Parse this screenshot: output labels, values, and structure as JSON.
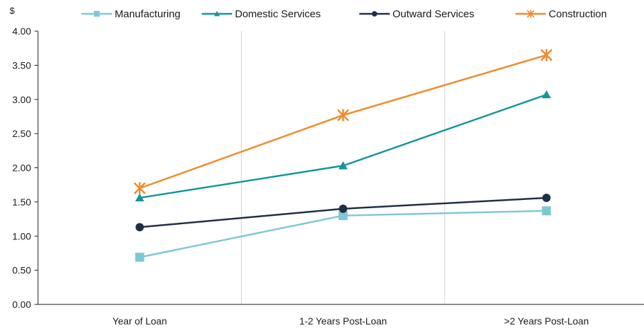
{
  "chart_data": {
    "type": "line",
    "title": "",
    "unit_label": "$",
    "xlabel": "",
    "ylabel": "",
    "categories": [
      "Year of Loan",
      "1-2 Years Post-Loan",
      ">2 Years Post-Loan"
    ],
    "ylim": [
      0,
      4
    ],
    "yticks": [
      "0.00",
      "0.50",
      "1.00",
      "1.50",
      "2.00",
      "2.50",
      "3.00",
      "3.50",
      "4.00"
    ],
    "legend_position": "top",
    "grid": false,
    "category_separators": true,
    "series": [
      {
        "name": "Manufacturing",
        "color": "#7ec8d6",
        "marker": "square",
        "values": [
          0.69,
          1.3,
          1.37
        ]
      },
      {
        "name": "Domestic Services",
        "color": "#14969a",
        "marker": "triangle",
        "values": [
          1.56,
          2.03,
          3.07
        ]
      },
      {
        "name": "Outward Services",
        "color": "#1e2f45",
        "marker": "circle",
        "values": [
          1.13,
          1.4,
          1.56
        ]
      },
      {
        "name": "Construction",
        "color": "#f08a2b",
        "marker": "asterisk",
        "values": [
          1.7,
          2.77,
          3.65
        ]
      }
    ]
  }
}
